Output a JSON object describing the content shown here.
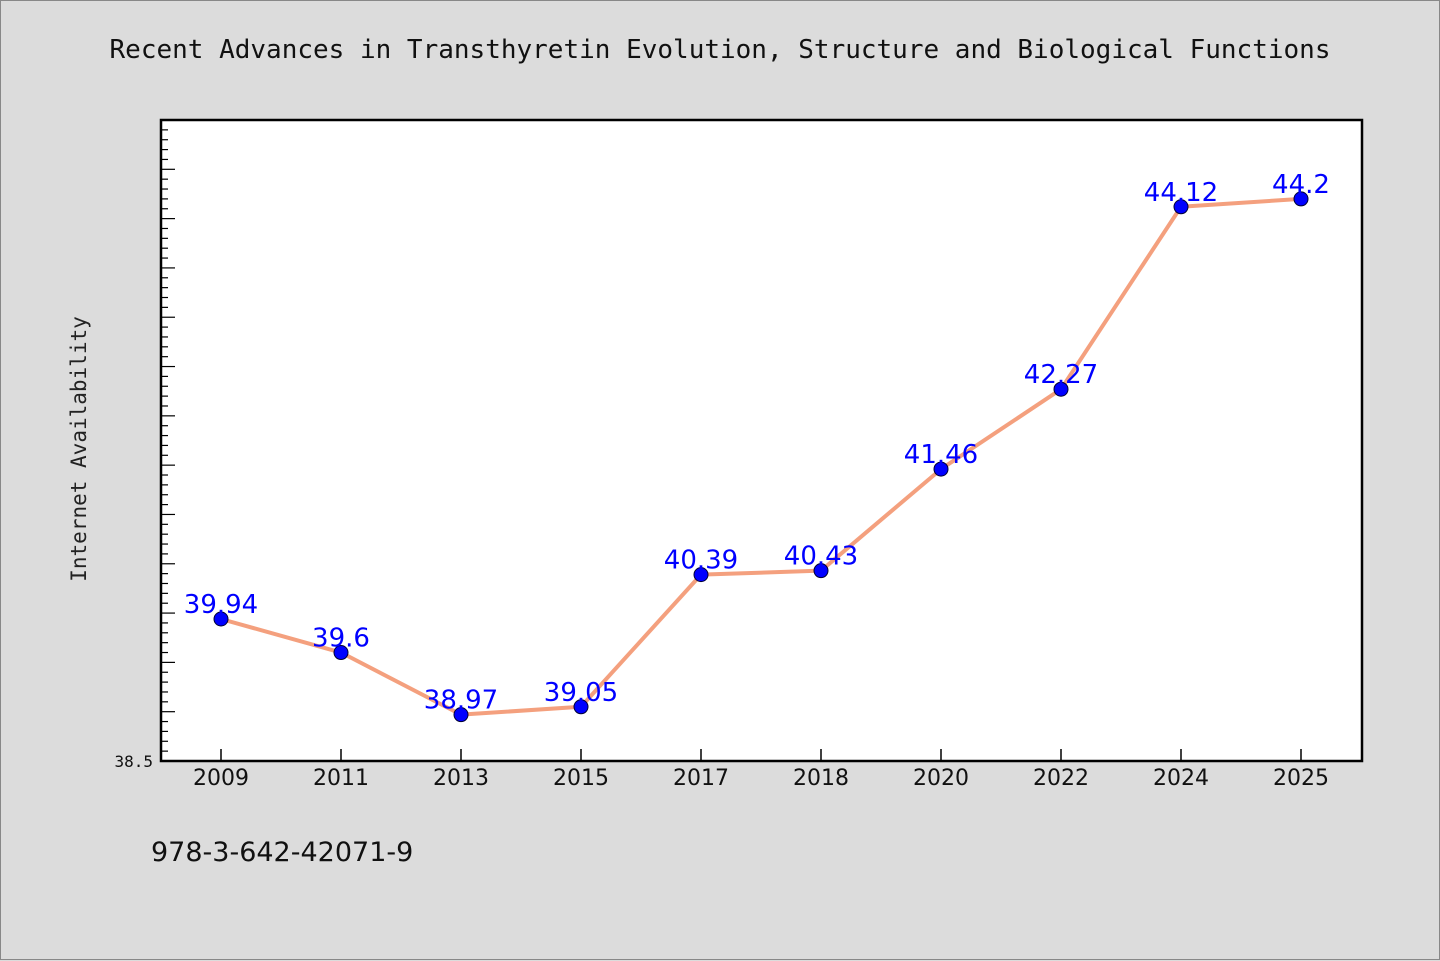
{
  "colors": {
    "background": "#dcdcdc",
    "plot_background": "#ffffff",
    "line": "#f4a07e",
    "marker": "#0000ff",
    "data_label": "#0000ff"
  },
  "footnote": "978-3-642-42071-9",
  "chart_data": {
    "type": "line",
    "title": "Recent Advances in Transthyretin Evolution, Structure and Biological Functions",
    "xlabel": "",
    "ylabel": "Internet Availability",
    "categories": [
      "2009",
      "2011",
      "2013",
      "2015",
      "2017",
      "2018",
      "2020",
      "2022",
      "2024",
      "2025"
    ],
    "series": [
      {
        "values": [
          39.94,
          39.6,
          38.97,
          39.05,
          40.39,
          40.43,
          41.46,
          42.27,
          44.12,
          44.2
        ],
        "labels": [
          "39.94",
          "39.6",
          "38.97",
          "39.05",
          "40.39",
          "40.43",
          "41.46",
          "42.27",
          "44.12",
          "44.2"
        ]
      }
    ],
    "ylim": [
      38.5,
      45.0
    ],
    "y_tick_labels": [
      "38.5"
    ],
    "grid": false,
    "legend": "none"
  }
}
